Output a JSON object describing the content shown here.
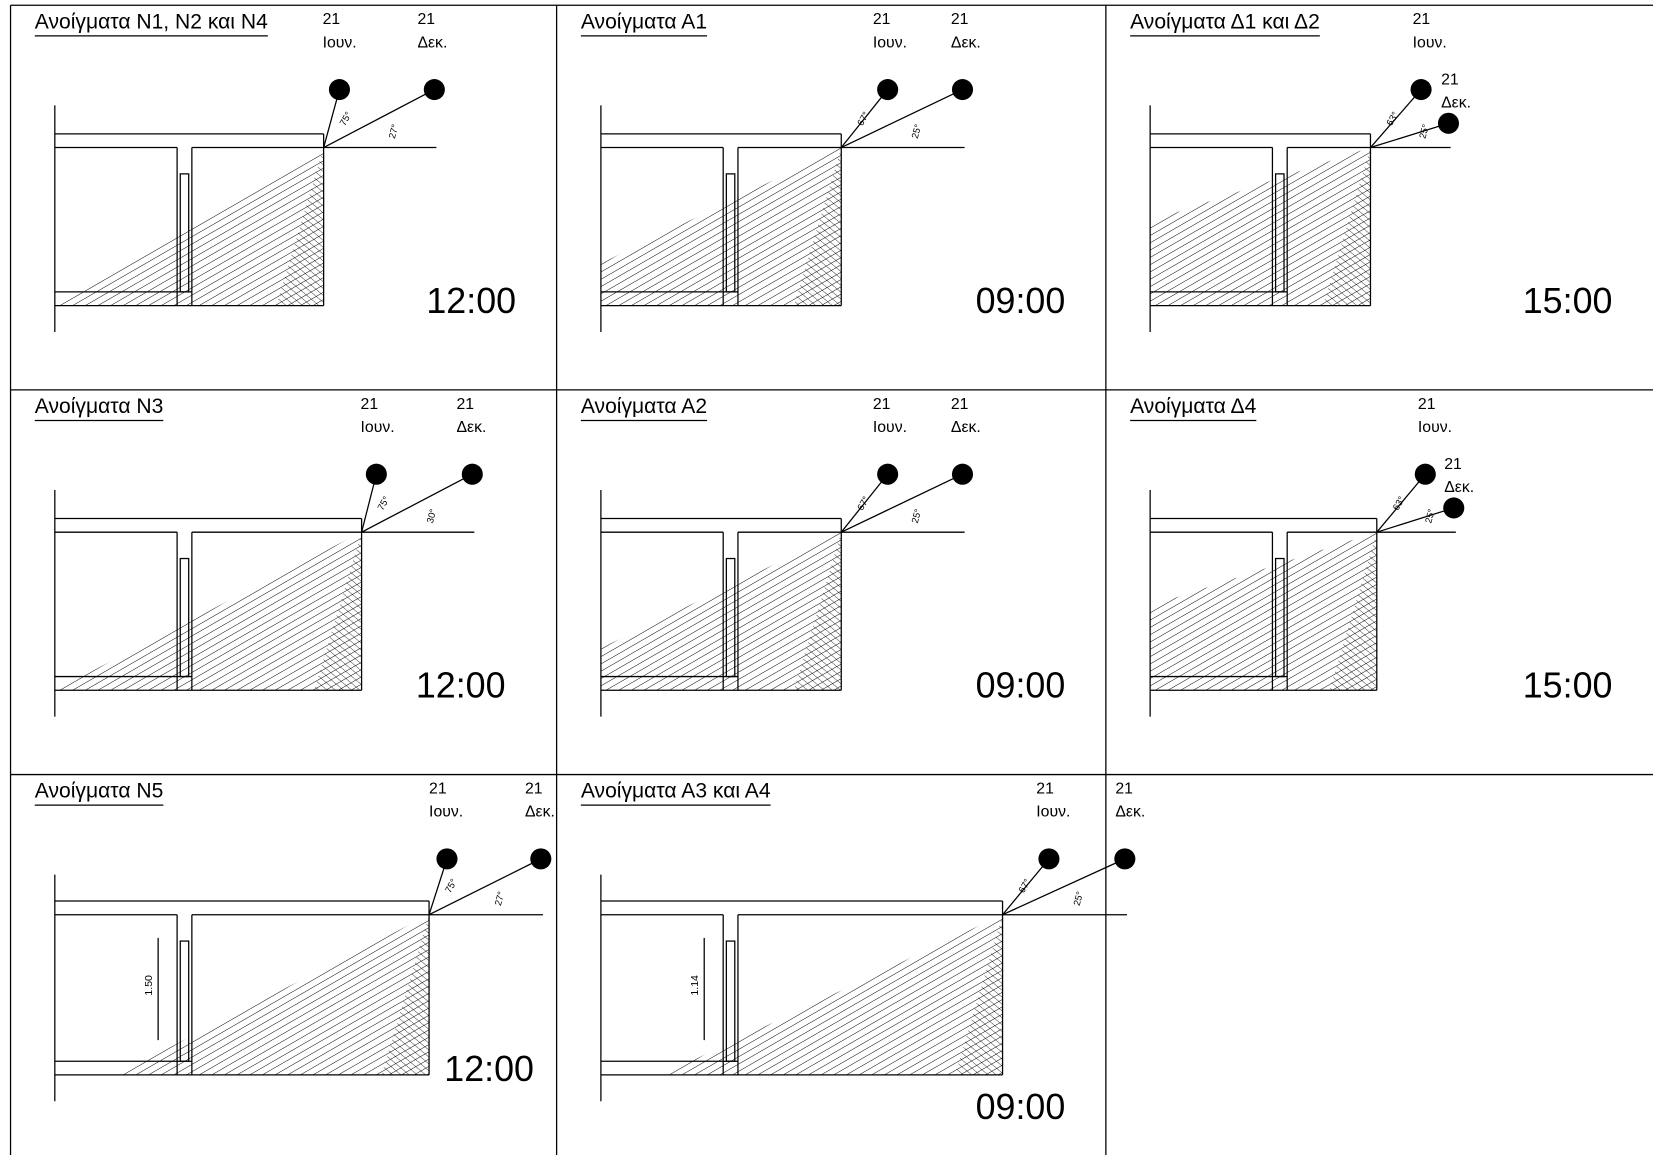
{
  "panels": [
    {
      "title": "Ανοίγματα Ν1, Ν2 και Ν4",
      "summer_day": "21",
      "summer_month": "Ιουν.",
      "winter_day": "21",
      "winter_month": "Δεκ.",
      "angles": [
        "75°",
        "27°"
      ],
      "time": "12:00"
    },
    {
      "title": "Ανοίγματα Α1",
      "summer_day": "21",
      "summer_month": "Ιουν.",
      "winter_day": "21",
      "winter_month": "Δεκ.",
      "angles": [
        "67°",
        "25°"
      ],
      "time": "09:00"
    },
    {
      "title": "Ανοίγματα Δ1 και Δ2",
      "summer_day": "21",
      "summer_month": "Ιουν.",
      "winter_day": "21",
      "winter_month": "Δεκ.",
      "angles": [
        "63°",
        "25°"
      ],
      "time": "15:00"
    },
    {
      "title": "Ανοίγματα Ν3",
      "summer_day": "21",
      "summer_month": "Ιουν.",
      "winter_day": "21",
      "winter_month": "Δεκ.",
      "angles": [
        "75°",
        "30°"
      ],
      "time": "12:00"
    },
    {
      "title": "Ανοίγματα Α2",
      "summer_day": "21",
      "summer_month": "Ιουν.",
      "winter_day": "21",
      "winter_month": "Δεκ.",
      "angles": [
        "67°",
        "25°"
      ],
      "time": "09:00"
    },
    {
      "title": "Ανοίγματα Δ4",
      "summer_day": "21",
      "summer_month": "Ιουν.",
      "winter_day": "21",
      "winter_month": "Δεκ.",
      "angles": [
        "63°",
        "25°"
      ],
      "time": "15:00"
    },
    {
      "title": "Ανοίγματα Ν5",
      "summer_day": "21",
      "summer_month": "Ιουν.",
      "winter_day": "21",
      "winter_month": "Δεκ.",
      "angles": [
        "75°",
        "27°"
      ],
      "time": "12:00",
      "dimension": "1.50"
    },
    {
      "title": "Ανοίγματα Α3 και Α4",
      "summer_day": "21",
      "summer_month": "Ιουν.",
      "winter_day": "21",
      "winter_month": "Δεκ.",
      "angles": [
        "67°",
        "25°"
      ],
      "time": "09:00",
      "dimension": "1.14"
    }
  ]
}
